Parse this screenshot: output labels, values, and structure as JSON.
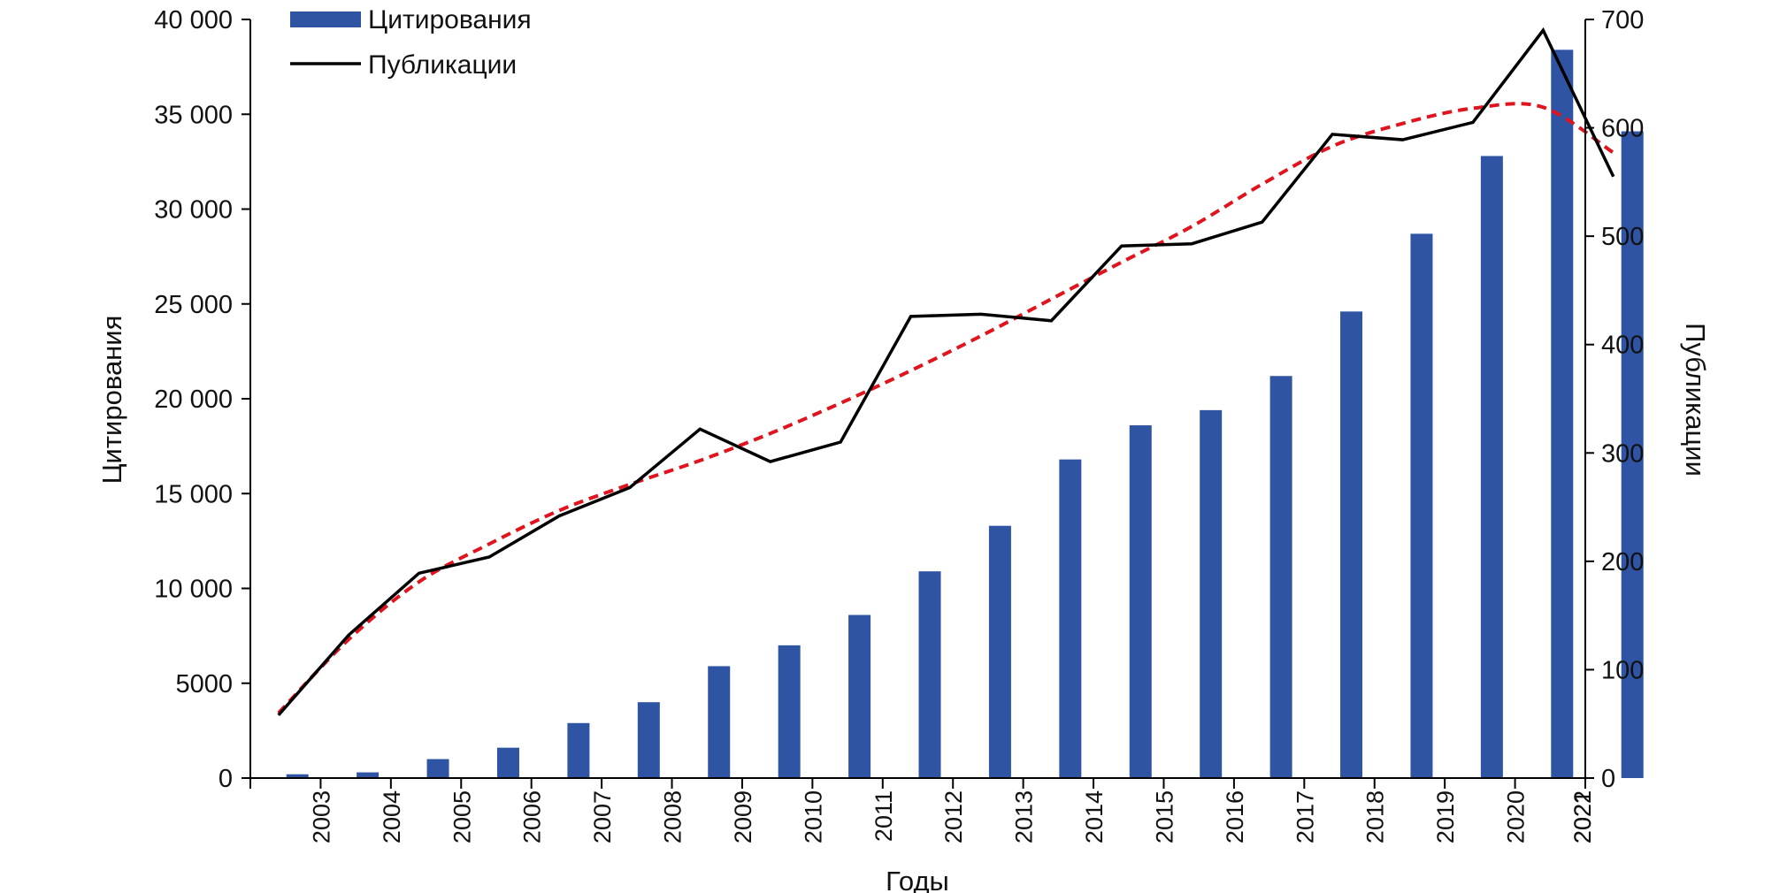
{
  "chart_data": {
    "type": "bar",
    "xlabel": "Годы",
    "categories": [
      "2003",
      "2004",
      "2005",
      "2006",
      "2007",
      "2008",
      "2009",
      "2010",
      "2011",
      "2012",
      "2013",
      "2014",
      "2015",
      "2016",
      "2017",
      "2018",
      "2019",
      "2020",
      "2021",
      "2022"
    ],
    "ylabel_left": "Цитирования",
    "ylabel_right": "Публикации",
    "ylim_left": [
      0,
      40000
    ],
    "ylim_right": [
      0,
      700
    ],
    "yticks_left": [
      "0",
      "5000",
      "10 000",
      "15 000",
      "20 000",
      "25 000",
      "30 000",
      "35 000",
      "40 000"
    ],
    "yticks_right": [
      "0",
      "100",
      "200",
      "300",
      "400",
      "500",
      "600",
      "700"
    ],
    "grid": false,
    "legend_position": "top-left",
    "series": [
      {
        "name": "Цитирования",
        "type": "bar",
        "axis": "left",
        "color": "#2e54a3",
        "values": [
          200,
          300,
          1000,
          1600,
          2900,
          4000,
          5900,
          7000,
          8600,
          10900,
          13300,
          16800,
          18600,
          19400,
          21200,
          24600,
          28700,
          32800,
          38400,
          34100
        ]
      },
      {
        "name": "Публикации",
        "type": "line",
        "axis": "right",
        "color": "#000000",
        "values": [
          58,
          132,
          189,
          204,
          242,
          268,
          322,
          292,
          310,
          426,
          428,
          422,
          491,
          493,
          513,
          594,
          589,
          605,
          690,
          555
        ]
      },
      {
        "type": "trendline",
        "axis": "right",
        "color": "#e0141e",
        "style": "dashed",
        "values": [
          60,
          128,
          181,
          216,
          247,
          271,
          293,
          318,
          346,
          376,
          408,
          442,
          476,
          509,
          548,
          583,
          604,
          618,
          619,
          577
        ]
      }
    ]
  }
}
